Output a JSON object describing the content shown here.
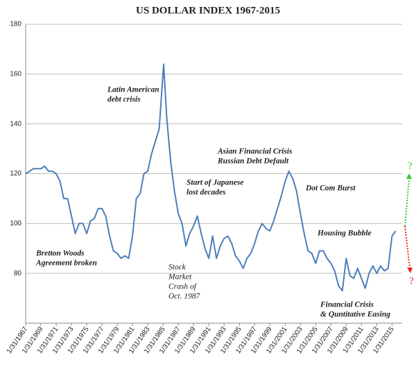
{
  "chart_data": {
    "type": "line",
    "title": "US DOLLAR INDEX  1967-2015",
    "x": [
      "1/31/1967",
      "7/31/1967",
      "1/31/1968",
      "7/31/1968",
      "1/31/1969",
      "7/31/1969",
      "1/31/1970",
      "7/31/1970",
      "1/31/1971",
      "7/31/1971",
      "1/31/1972",
      "7/31/1972",
      "1/31/1973",
      "7/31/1973",
      "1/31/1974",
      "7/31/1974",
      "1/31/1975",
      "7/31/1975",
      "1/31/1976",
      "7/31/1976",
      "1/31/1977",
      "7/31/1977",
      "1/31/1978",
      "7/31/1978",
      "1/31/1979",
      "7/31/1979",
      "1/31/1980",
      "7/31/1980",
      "1/31/1981",
      "7/31/1981",
      "1/31/1982",
      "7/31/1982",
      "1/31/1983",
      "7/31/1983",
      "1/31/1984",
      "7/31/1984",
      "2/28/1985",
      "7/31/1985",
      "1/31/1986",
      "7/31/1986",
      "1/31/1987",
      "7/31/1987",
      "1/31/1988",
      "7/31/1988",
      "1/31/1989",
      "7/31/1989",
      "1/31/1990",
      "7/31/1990",
      "1/31/1991",
      "7/31/1991",
      "1/31/1992",
      "7/31/1992",
      "1/31/1993",
      "7/31/1993",
      "1/31/1994",
      "7/31/1994",
      "1/31/1995",
      "7/31/1995",
      "1/31/1996",
      "7/31/1996",
      "1/31/1997",
      "7/31/1997",
      "1/31/1998",
      "7/31/1998",
      "1/31/1999",
      "7/31/1999",
      "1/31/2000",
      "7/31/2000",
      "1/31/2001",
      "7/31/2001",
      "1/31/2002",
      "7/31/2002",
      "1/31/2003",
      "7/31/2003",
      "1/31/2004",
      "7/31/2004",
      "1/31/2005",
      "7/31/2005",
      "1/31/2006",
      "7/31/2006",
      "1/31/2007",
      "7/31/2007",
      "1/31/2008",
      "7/31/2008",
      "1/31/2009",
      "7/31/2009",
      "1/31/2010",
      "7/31/2010",
      "1/31/2011",
      "7/31/2011",
      "1/31/2012",
      "7/31/2012",
      "1/31/2013",
      "7/31/2013",
      "1/31/2014",
      "7/31/2014",
      "1/31/2015",
      "7/31/2015"
    ],
    "values": [
      120,
      121,
      122,
      122,
      122,
      123,
      121,
      121,
      120,
      117,
      110,
      110,
      103,
      96,
      100,
      100,
      96,
      101,
      102,
      106,
      106,
      103,
      95,
      89,
      88,
      86,
      87,
      86,
      95,
      110,
      112,
      120,
      121,
      128,
      133,
      138,
      164,
      142,
      125,
      113,
      104,
      100,
      91,
      96,
      99,
      103,
      96,
      90,
      86,
      95,
      86,
      91,
      94,
      95,
      92,
      87,
      85,
      82,
      86,
      88,
      92,
      97,
      100,
      98,
      97,
      101,
      106,
      111,
      117,
      121,
      118,
      113,
      104,
      96,
      89,
      88,
      84,
      89,
      89,
      86,
      84,
      81,
      75,
      73,
      86,
      79,
      78,
      82,
      78,
      74,
      80,
      83,
      80,
      83,
      81,
      82,
      95,
      97
    ],
    "color": "#4a7ebb",
    "xlim": [
      "1/31/1967",
      "5/31/2016"
    ],
    "xticks": [
      "1/31/1967",
      "1/31/1969",
      "1/31/1971",
      "1/31/1973",
      "1/31/1975",
      "1/31/1977",
      "1/31/1979",
      "1/31/1981",
      "1/31/1983",
      "1/31/1985",
      "1/31/1987",
      "1/31/1989",
      "1/31/1991",
      "1/31/1993",
      "1/31/1995",
      "1/31/1997",
      "1/31/1999",
      "1/31/2001",
      "1/31/2003",
      "1/31/2005",
      "1/31/2007",
      "1/31/2009",
      "1/31/2011",
      "1/31/2013",
      "1/31/2015"
    ],
    "ylim": [
      60,
      180
    ],
    "yticks": [
      80,
      100,
      120,
      140,
      160,
      180
    ],
    "grid": true,
    "annotations": [
      {
        "lines": [
          "Latin American",
          "debt crisis"
        ]
      },
      {
        "lines": [
          "Asian Financial Crisis",
          "Russian Debt Default"
        ]
      },
      {
        "lines": [
          "Start of Japanese",
          "lost decades"
        ]
      },
      {
        "lines": [
          "Dot Com Burst"
        ]
      },
      {
        "lines": [
          "Housing Bubble"
        ]
      },
      {
        "lines": [
          "Bretton Woods",
          "Agreement broken"
        ]
      },
      {
        "lines": [
          "Stock",
          "Market",
          "Crash of",
          "Oct. 1987"
        ]
      },
      {
        "lines": [
          "Financial Crisis",
          "& Quntitative Easing"
        ]
      },
      {
        "lines": [
          "?"
        ],
        "color": "#33cc33"
      },
      {
        "lines": [
          "?"
        ],
        "color": "#ee2222"
      }
    ]
  }
}
